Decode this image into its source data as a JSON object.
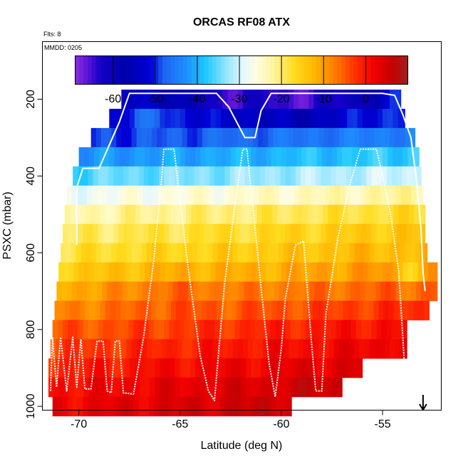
{
  "chart_data": {
    "type": "heatmap",
    "title": "ORCAS RF08 ATX",
    "flts_label": "Flts: 8",
    "mmdd_label": "MMDD: 0205",
    "xlabel": "Latitude (deg N)",
    "ylabel": "PSXC (mbar)",
    "xlim": [
      -71.8,
      -52.1
    ],
    "ylim": [
      1010,
      50
    ],
    "x_ticks": [
      -70,
      -65,
      -60,
      -55
    ],
    "y_ticks": [
      200,
      400,
      600,
      800,
      1000
    ],
    "colorbar": {
      "range": [
        -69,
        10
      ],
      "ticks": [
        -60,
        -50,
        -40,
        -30,
        -20,
        -10,
        0
      ],
      "tick_labels": [
        "-60",
        "-50",
        "-40",
        "-30",
        "-20",
        "-10",
        "0"
      ],
      "stops": [
        {
          "v": -69,
          "c": "#8a2be2"
        },
        {
          "v": -66,
          "c": "#5a14d6"
        },
        {
          "v": -63,
          "c": "#1400c8"
        },
        {
          "v": -57,
          "c": "#0000aa"
        },
        {
          "v": -51,
          "c": "#0000d8"
        },
        {
          "v": -48,
          "c": "#1e64f0"
        },
        {
          "v": -43,
          "c": "#1e8cff"
        },
        {
          "v": -38,
          "c": "#1ec8ff"
        },
        {
          "v": -33,
          "c": "#96e6ff"
        },
        {
          "v": -29,
          "c": "#e6f8ff"
        },
        {
          "v": -26,
          "c": "#fffde0"
        },
        {
          "v": -22,
          "c": "#fff5a0"
        },
        {
          "v": -17,
          "c": "#ffdc1e"
        },
        {
          "v": -12,
          "c": "#ffb400"
        },
        {
          "v": -7,
          "c": "#ff7800"
        },
        {
          "v": -2,
          "c": "#ff2800"
        },
        {
          "v": 2,
          "c": "#f00000"
        },
        {
          "v": 6,
          "c": "#c80000"
        },
        {
          "v": 10,
          "c": "#a01e1e"
        }
      ]
    },
    "heatmap": {
      "cell_width_deg": 0.25,
      "layers": [
        {
          "p": 200,
          "xmin": -67.9,
          "xmax": -54.1
        },
        {
          "p": 250,
          "xmin": -68.5,
          "xmax": -53.9
        },
        {
          "p": 300,
          "xmin": -69.4,
          "xmax": -53.4
        },
        {
          "p": 350,
          "xmin": -70.0,
          "xmax": -53.2
        },
        {
          "p": 400,
          "xmin": -70.3,
          "xmax": -53.1
        },
        {
          "p": 450,
          "xmin": -70.6,
          "xmax": -53.0
        },
        {
          "p": 500,
          "xmin": -70.7,
          "xmax": -52.9
        },
        {
          "p": 550,
          "xmin": -70.8,
          "xmax": -52.9
        },
        {
          "p": 600,
          "xmin": -70.9,
          "xmax": -52.8
        },
        {
          "p": 650,
          "xmin": -71.0,
          "xmax": -52.3
        },
        {
          "p": 700,
          "xmin": -71.1,
          "xmax": -52.3
        },
        {
          "p": 750,
          "xmin": -71.2,
          "xmax": -52.7
        },
        {
          "p": 800,
          "xmin": -71.3,
          "xmax": -53.8
        },
        {
          "p": 850,
          "xmin": -71.4,
          "xmax": -53.8
        },
        {
          "p": 900,
          "xmin": -71.5,
          "xmax": -56.0
        },
        {
          "p": 950,
          "xmin": -71.5,
          "xmax": -57.0
        },
        {
          "p": 1000,
          "xmin": -71.3,
          "xmax": -59.5
        }
      ],
      "profile": [
        {
          "p": 200,
          "t": -52
        },
        {
          "p": 250,
          "t": -52
        },
        {
          "p": 300,
          "t": -47
        },
        {
          "p": 350,
          "t": -40
        },
        {
          "p": 400,
          "t": -33
        },
        {
          "p": 450,
          "t": -25
        },
        {
          "p": 500,
          "t": -20
        },
        {
          "p": 550,
          "t": -17
        },
        {
          "p": 600,
          "t": -15
        },
        {
          "p": 650,
          "t": -12
        },
        {
          "p": 700,
          "t": -8
        },
        {
          "p": 750,
          "t": -5
        },
        {
          "p": 800,
          "t": -2
        },
        {
          "p": 850,
          "t": 0
        },
        {
          "p": 900,
          "t": 2
        },
        {
          "p": 950,
          "t": 4
        },
        {
          "p": 1000,
          "t": 5
        }
      ],
      "blobs": [
        {
          "lat": -63.0,
          "p": 200,
          "dlat": 1.6,
          "dp": 22,
          "amp": -11
        },
        {
          "lat": -59.5,
          "p": 200,
          "dlat": 2.2,
          "dp": 25,
          "amp": -14
        },
        {
          "lat": -56.5,
          "p": 200,
          "dlat": 1.6,
          "dp": 22,
          "amp": -9
        },
        {
          "lat": -59.0,
          "p": 250,
          "dlat": 2.5,
          "dp": 25,
          "amp": -4
        },
        {
          "lat": -66.5,
          "p": 250,
          "dlat": 1.8,
          "dp": 20,
          "amp": 6
        },
        {
          "lat": -53.5,
          "p": 650,
          "dlat": 0.8,
          "dp": 40,
          "amp": -6
        },
        {
          "lat": -65.5,
          "p": 700,
          "dlat": 2.5,
          "dp": 60,
          "amp": 3
        }
      ]
    },
    "flight_track": [
      [
        -71.4,
        960
      ],
      [
        -71.3,
        820
      ],
      [
        -71.1,
        950
      ],
      [
        -70.9,
        820
      ],
      [
        -70.6,
        960
      ],
      [
        -70.3,
        820
      ],
      [
        -70.1,
        950
      ],
      [
        -69.9,
        825
      ],
      [
        -69.7,
        955
      ],
      [
        -69.4,
        955
      ],
      [
        -69.1,
        830
      ],
      [
        -68.8,
        830
      ],
      [
        -68.6,
        960
      ],
      [
        -68.4,
        965
      ],
      [
        -68.2,
        830
      ],
      [
        -68.0,
        830
      ],
      [
        -67.8,
        965
      ],
      [
        -67.3,
        968
      ],
      [
        -66.8,
        820
      ],
      [
        -66.3,
        620
      ],
      [
        -65.9,
        400
      ],
      [
        -65.8,
        330
      ],
      [
        -65.3,
        330
      ],
      [
        -65.1,
        420
      ],
      [
        -64.6,
        640
      ],
      [
        -64.0,
        870
      ],
      [
        -63.6,
        960
      ],
      [
        -63.3,
        985
      ],
      [
        -62.8,
        680
      ],
      [
        -62.3,
        480
      ],
      [
        -61.9,
        330
      ],
      [
        -61.7,
        330
      ],
      [
        -61.4,
        480
      ],
      [
        -61.0,
        690
      ],
      [
        -60.6,
        890
      ],
      [
        -60.3,
        975
      ],
      [
        -60.0,
        850
      ],
      [
        -59.8,
        720
      ],
      [
        -59.3,
        580
      ],
      [
        -58.9,
        570
      ],
      [
        -58.5,
        840
      ],
      [
        -58.3,
        960
      ],
      [
        -58.0,
        960
      ],
      [
        -57.8,
        760
      ],
      [
        -57.2,
        560
      ],
      [
        -56.6,
        420
      ],
      [
        -56.1,
        330
      ],
      [
        -55.7,
        330
      ],
      [
        -55.3,
        330
      ],
      [
        -55.0,
        400
      ],
      [
        -54.6,
        500
      ],
      [
        -54.2,
        650
      ],
      [
        -54.0,
        820
      ],
      [
        -53.9,
        910
      ]
    ],
    "flight_track_upper": [
      [
        -70.1,
        580
      ],
      [
        -70.1,
        430
      ],
      [
        -69.8,
        380
      ],
      [
        -69.0,
        380
      ],
      [
        -68.5,
        320
      ],
      [
        -68.0,
        260
      ],
      [
        -67.5,
        185
      ],
      [
        -66.0,
        185
      ],
      [
        -64.3,
        185
      ],
      [
        -63.2,
        185
      ],
      [
        -62.6,
        220
      ],
      [
        -61.8,
        300
      ],
      [
        -61.3,
        300
      ],
      [
        -61.0,
        230
      ],
      [
        -60.5,
        185
      ],
      [
        -58.0,
        185
      ],
      [
        -55.0,
        185
      ],
      [
        -54.4,
        190
      ],
      [
        -54.0,
        240
      ],
      [
        -53.6,
        300
      ],
      [
        -53.3,
        420
      ],
      [
        -53.1,
        540
      ],
      [
        -53.0,
        650
      ],
      [
        -52.9,
        700
      ]
    ],
    "arrow_lat": -53.0
  }
}
